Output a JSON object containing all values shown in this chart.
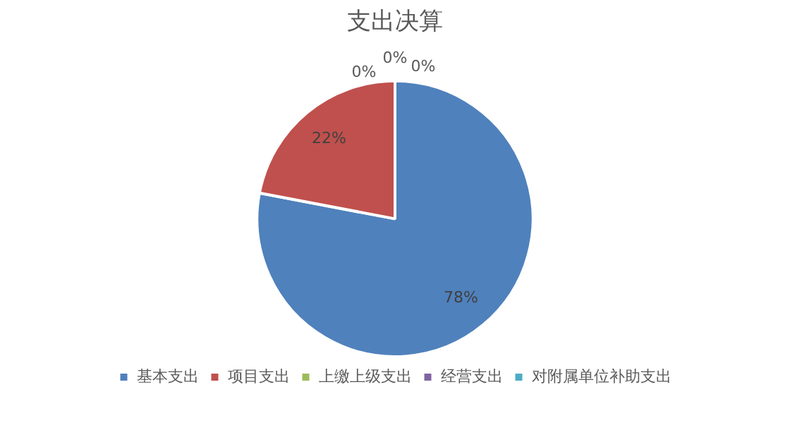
{
  "chart_data": {
    "type": "pie",
    "title": "支出决算",
    "categories": [
      "基本支出",
      "项目支出",
      "上缴上级支出",
      "经营支出",
      "对附属单位补助支出"
    ],
    "values": [
      78,
      22,
      0,
      0,
      0
    ],
    "colors": [
      "#4f81bd",
      "#c0504d",
      "#9bbb59",
      "#8064a2",
      "#4bacc6"
    ],
    "value_labels": [
      "78%",
      "22%",
      "0%",
      "0%",
      "0%"
    ],
    "legend": "bottom"
  }
}
